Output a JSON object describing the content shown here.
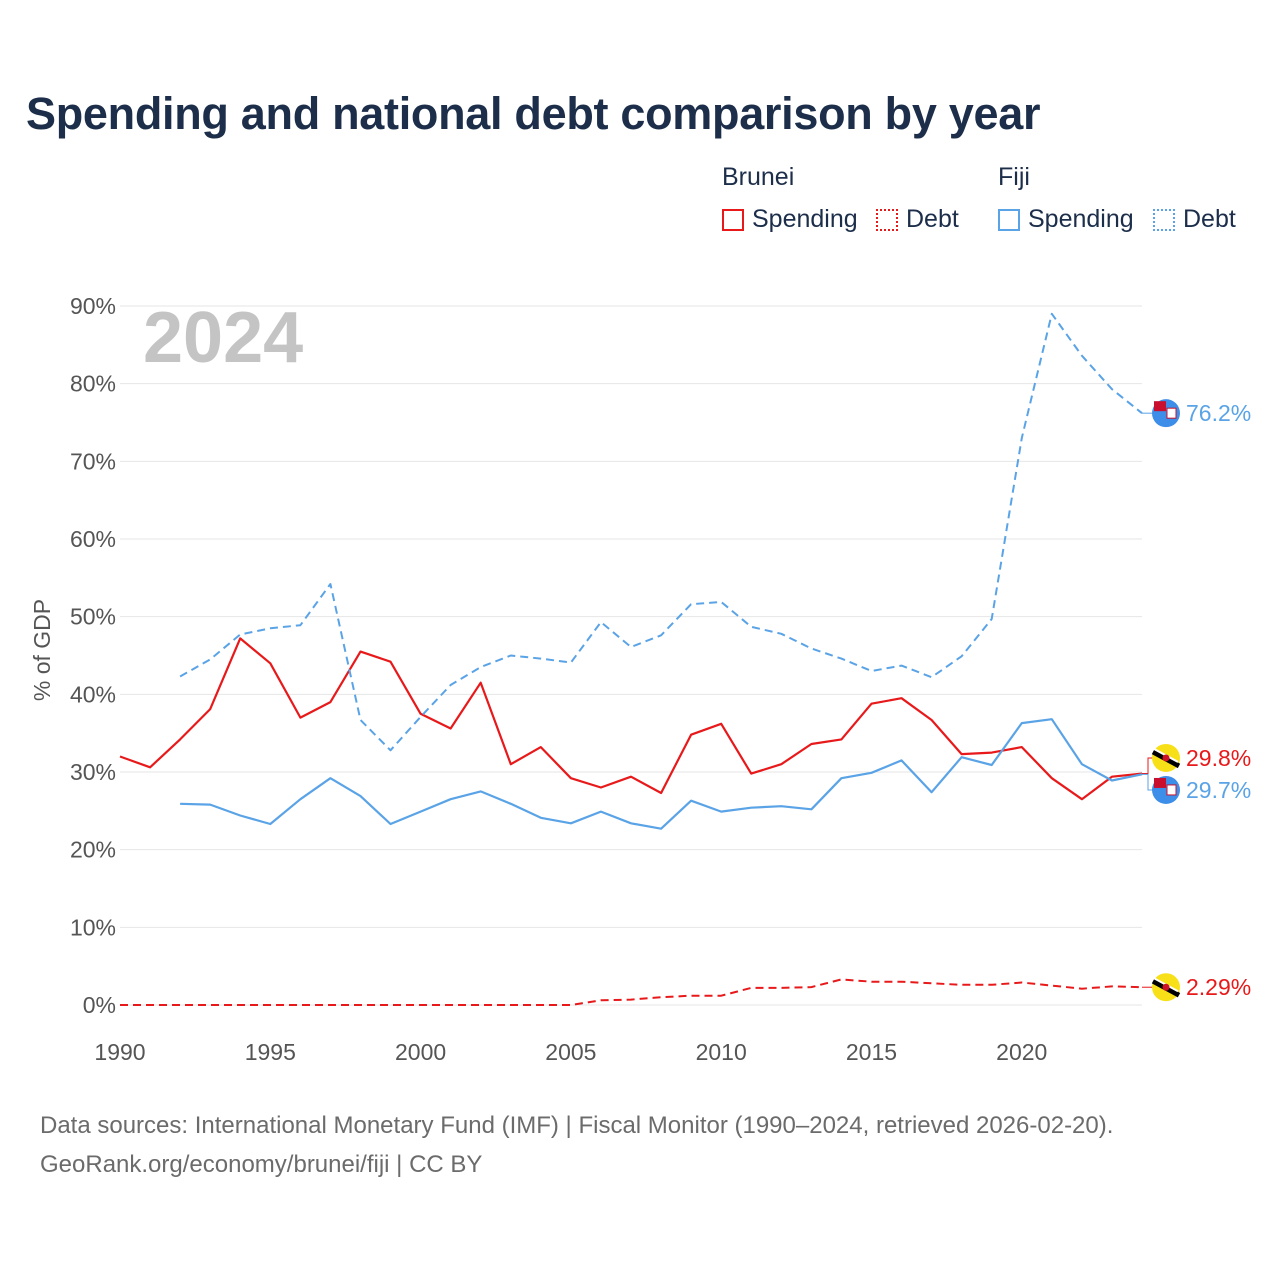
{
  "title": "Spending and national debt comparison by year",
  "year_watermark": "2024",
  "legend": {
    "groups": [
      {
        "name": "Brunei",
        "color": "#e8191a",
        "items": [
          {
            "label": "Spending",
            "style": "solid"
          },
          {
            "label": "Debt",
            "style": "dotted"
          }
        ]
      },
      {
        "name": "Fiji",
        "color": "#5aa3e6",
        "items": [
          {
            "label": "Spending",
            "style": "solid"
          },
          {
            "label": "Debt",
            "style": "dotted"
          }
        ]
      }
    ]
  },
  "source": {
    "line1": "Data sources: International Monetary Fund (IMF) | Fiscal Monitor (1990–2024, retrieved 2026-02-20).",
    "line2": "GeoRank.org/economy/brunei/fiji | CC BY"
  },
  "chart_data": {
    "type": "line",
    "title": "Spending and national debt comparison by year",
    "xlabel": "",
    "ylabel": "% of GDP",
    "xlim": [
      1990,
      2024
    ],
    "ylim": [
      0,
      90
    ],
    "x_ticks": [
      1990,
      1995,
      2000,
      2005,
      2010,
      2015,
      2020
    ],
    "y_ticks": [
      "0%",
      "10%",
      "20%",
      "30%",
      "40%",
      "50%",
      "60%",
      "70%",
      "80%",
      "90%"
    ],
    "grid": true,
    "series": [
      {
        "name": "Brunei Spending",
        "country": "Brunei",
        "color": "#e8191a",
        "dash": "solid",
        "x": [
          1990,
          1991,
          1992,
          1993,
          1994,
          1995,
          1996,
          1997,
          1998,
          1999,
          2000,
          2001,
          2002,
          2003,
          2004,
          2005,
          2006,
          2007,
          2008,
          2009,
          2010,
          2011,
          2012,
          2013,
          2014,
          2015,
          2016,
          2017,
          2018,
          2019,
          2020,
          2021,
          2022,
          2023,
          2024
        ],
        "values": [
          32.0,
          30.6,
          34.2,
          38.1,
          47.2,
          44.0,
          37.0,
          39.0,
          45.5,
          44.2,
          37.5,
          35.6,
          41.5,
          31.0,
          33.2,
          29.2,
          28.0,
          29.4,
          27.3,
          34.8,
          36.2,
          29.8,
          31.0,
          33.6,
          34.2,
          38.8,
          39.5,
          36.7,
          32.3,
          32.5,
          33.2,
          29.2,
          26.5,
          29.4,
          29.8
        ],
        "end_label": "29.8%"
      },
      {
        "name": "Brunei Debt",
        "country": "Brunei",
        "color": "#e8191a",
        "dash": "dashed",
        "x": [
          1990,
          1991,
          1992,
          1993,
          1994,
          1995,
          1996,
          1997,
          1998,
          1999,
          2000,
          2001,
          2002,
          2003,
          2004,
          2005,
          2006,
          2007,
          2008,
          2009,
          2010,
          2011,
          2012,
          2013,
          2014,
          2015,
          2016,
          2017,
          2018,
          2019,
          2020,
          2021,
          2022,
          2023,
          2024
        ],
        "values": [
          0,
          0,
          0,
          0,
          0,
          0,
          0,
          0,
          0,
          0,
          0,
          0,
          0,
          0,
          0,
          0,
          0.6,
          0.7,
          1.0,
          1.2,
          1.2,
          2.2,
          2.2,
          2.3,
          3.3,
          3.0,
          3.0,
          2.8,
          2.6,
          2.6,
          2.9,
          2.5,
          2.1,
          2.4,
          2.29
        ],
        "end_label": "2.29%"
      },
      {
        "name": "Fiji Spending",
        "country": "Fiji",
        "color": "#5aa3e6",
        "dash": "solid",
        "x": [
          1992,
          1993,
          1994,
          1995,
          1996,
          1997,
          1998,
          1999,
          2000,
          2001,
          2002,
          2003,
          2004,
          2005,
          2006,
          2007,
          2008,
          2009,
          2010,
          2011,
          2012,
          2013,
          2014,
          2015,
          2016,
          2017,
          2018,
          2019,
          2020,
          2021,
          2022,
          2023,
          2024
        ],
        "values": [
          25.9,
          25.8,
          24.4,
          23.3,
          26.5,
          29.2,
          26.9,
          23.3,
          24.9,
          26.5,
          27.5,
          25.9,
          24.1,
          23.4,
          24.9,
          23.4,
          22.7,
          26.3,
          24.9,
          25.4,
          25.6,
          25.2,
          29.2,
          29.9,
          31.5,
          27.4,
          31.9,
          30.9,
          36.3,
          36.8,
          31.0,
          28.9,
          29.7
        ],
        "end_label": "29.7%"
      },
      {
        "name": "Fiji Debt",
        "country": "Fiji",
        "color": "#5aa3e6",
        "dash": "dashed",
        "x": [
          1992,
          1993,
          1994,
          1995,
          1996,
          1997,
          1998,
          1999,
          2000,
          2001,
          2002,
          2003,
          2004,
          2005,
          2006,
          2007,
          2008,
          2009,
          2010,
          2011,
          2012,
          2013,
          2014,
          2015,
          2016,
          2017,
          2018,
          2019,
          2020,
          2021,
          2022,
          2023,
          2024
        ],
        "values": [
          42.3,
          44.5,
          47.7,
          48.5,
          48.9,
          54.2,
          36.7,
          32.8,
          37.1,
          41.2,
          43.5,
          45.0,
          44.6,
          44.1,
          49.3,
          46.1,
          47.6,
          51.6,
          51.9,
          48.7,
          47.8,
          45.9,
          44.6,
          43.0,
          43.7,
          42.2,
          44.9,
          49.7,
          73.0,
          89.0,
          83.6,
          79.3,
          76.2
        ],
        "end_label": "76.2%"
      }
    ]
  }
}
